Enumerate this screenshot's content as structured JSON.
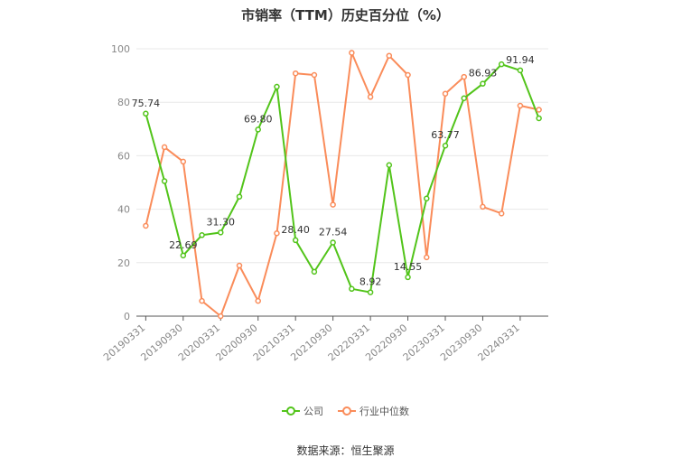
{
  "chart_data": {
    "type": "line",
    "title": "市销率（TTM）历史百分位（%）",
    "source": "数据来源：恒生聚源",
    "ylim": [
      0,
      100
    ],
    "yticks": [
      "0",
      "20",
      "40",
      "60",
      "80",
      "100"
    ],
    "x": [
      "20190331",
      "20190630",
      "20190930",
      "20191231",
      "20200331",
      "20200630",
      "20200930",
      "20201231",
      "20210331",
      "20210630",
      "20210930",
      "20211231",
      "20220331",
      "20220630",
      "20220930",
      "20221231",
      "20230331",
      "20230630",
      "20230930",
      "20231231",
      "20240331",
      "20240630"
    ],
    "xtick_labels": [
      "20190331",
      "20190930",
      "20200331",
      "20200930",
      "20210331",
      "20210930",
      "20220331",
      "20220930",
      "20230331",
      "20230930",
      "20240331"
    ],
    "series": [
      {
        "name": "公司",
        "color": "#52c41a",
        "values": [
          75.74,
          50.5,
          22.69,
          30.3,
          31.3,
          44.7,
          69.8,
          85.8,
          28.4,
          16.6,
          27.54,
          10.2,
          8.92,
          56.5,
          14.55,
          44.0,
          63.77,
          81.5,
          86.93,
          94.2,
          91.94,
          74.0
        ],
        "data_labels": [
          "75.74",
          null,
          "22.69",
          null,
          "31.30",
          null,
          "69.80",
          null,
          "28.40",
          null,
          "27.54",
          null,
          "8.92",
          null,
          "14.55",
          null,
          "63.77",
          null,
          "86.93",
          null,
          "91.94",
          null
        ]
      },
      {
        "name": "行业中位数",
        "color": "#fa8c5a",
        "values": [
          33.8,
          63.2,
          57.8,
          5.7,
          0.0,
          18.9,
          5.7,
          31.0,
          90.8,
          90.2,
          41.7,
          98.5,
          82.0,
          97.4,
          90.2,
          22.0,
          83.2,
          89.5,
          40.9,
          38.4,
          78.7,
          77.2
        ]
      }
    ],
    "grid": "horizontal",
    "legend_position": "bottom-center"
  }
}
